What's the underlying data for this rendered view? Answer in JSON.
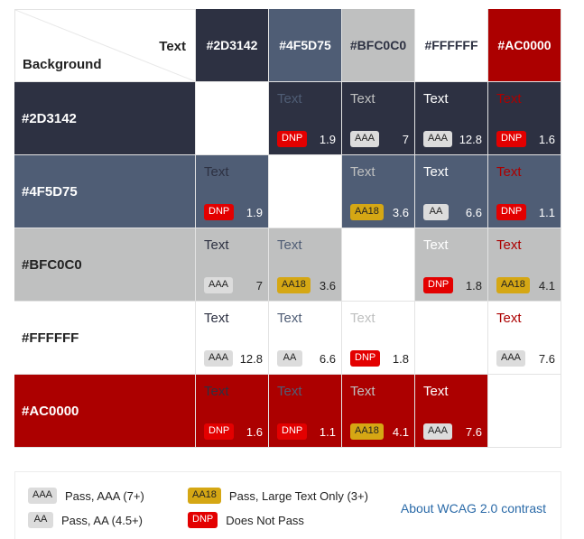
{
  "colors": [
    "#2D3142",
    "#4F5D75",
    "#BFC0C0",
    "#FFFFFF",
    "#AC0000"
  ],
  "header": {
    "text_axis_label": "Text",
    "background_axis_label": "Background",
    "columns": [
      "#2D3142",
      "#4F5D75",
      "#BFC0C0",
      "#FFFFFF",
      "#AC0000"
    ],
    "column_text_colors": [
      "#FFFFFF",
      "#FFFFFF",
      "#2D3142",
      "#2D3142",
      "#FFFFFF"
    ]
  },
  "rows": [
    {
      "label": "#2D3142",
      "label_color": "#FFFFFF",
      "cells": [
        null,
        {
          "sample": "Text",
          "badge": "DNP",
          "ratio": "1.9"
        },
        {
          "sample": "Text",
          "badge": "AAA",
          "ratio": "7"
        },
        {
          "sample": "Text",
          "badge": "AAA",
          "ratio": "12.8"
        },
        {
          "sample": "Text",
          "badge": "DNP",
          "ratio": "1.6"
        }
      ]
    },
    {
      "label": "#4F5D75",
      "label_color": "#FFFFFF",
      "cells": [
        {
          "sample": "Text",
          "badge": "DNP",
          "ratio": "1.9"
        },
        null,
        {
          "sample": "Text",
          "badge": "AA18",
          "ratio": "3.6"
        },
        {
          "sample": "Text",
          "badge": "AA",
          "ratio": "6.6"
        },
        {
          "sample": "Text",
          "badge": "DNP",
          "ratio": "1.1"
        }
      ]
    },
    {
      "label": "#BFC0C0",
      "label_color": "#222222",
      "cells": [
        {
          "sample": "Text",
          "badge": "AAA",
          "ratio": "7"
        },
        {
          "sample": "Text",
          "badge": "AA18",
          "ratio": "3.6"
        },
        null,
        {
          "sample": "Text",
          "badge": "DNP",
          "ratio": "1.8"
        },
        {
          "sample": "Text",
          "badge": "AA18",
          "ratio": "4.1"
        }
      ]
    },
    {
      "label": "#FFFFFF",
      "label_color": "#222222",
      "cells": [
        {
          "sample": "Text",
          "badge": "AAA",
          "ratio": "12.8"
        },
        {
          "sample": "Text",
          "badge": "AA",
          "ratio": "6.6"
        },
        {
          "sample": "Text",
          "badge": "DNP",
          "ratio": "1.8"
        },
        null,
        {
          "sample": "Text",
          "badge": "AAA",
          "ratio": "7.6"
        }
      ]
    },
    {
      "label": "#AC0000",
      "label_color": "#FFFFFF",
      "cells": [
        {
          "sample": "Text",
          "badge": "DNP",
          "ratio": "1.6"
        },
        {
          "sample": "Text",
          "badge": "DNP",
          "ratio": "1.1"
        },
        {
          "sample": "Text",
          "badge": "AA18",
          "ratio": "4.1"
        },
        {
          "sample": "Text",
          "badge": "AAA",
          "ratio": "7.6"
        },
        null
      ]
    }
  ],
  "legend": {
    "items": [
      {
        "badge": "AAA",
        "label": "Pass, AAA (7+)"
      },
      {
        "badge": "AA",
        "label": "Pass, AA (4.5+)"
      },
      {
        "badge": "AA18",
        "label": "Pass, Large Text Only (3+)"
      },
      {
        "badge": "DNP",
        "label": "Does Not Pass"
      }
    ],
    "link_label": "About WCAG 2.0 contrast"
  }
}
